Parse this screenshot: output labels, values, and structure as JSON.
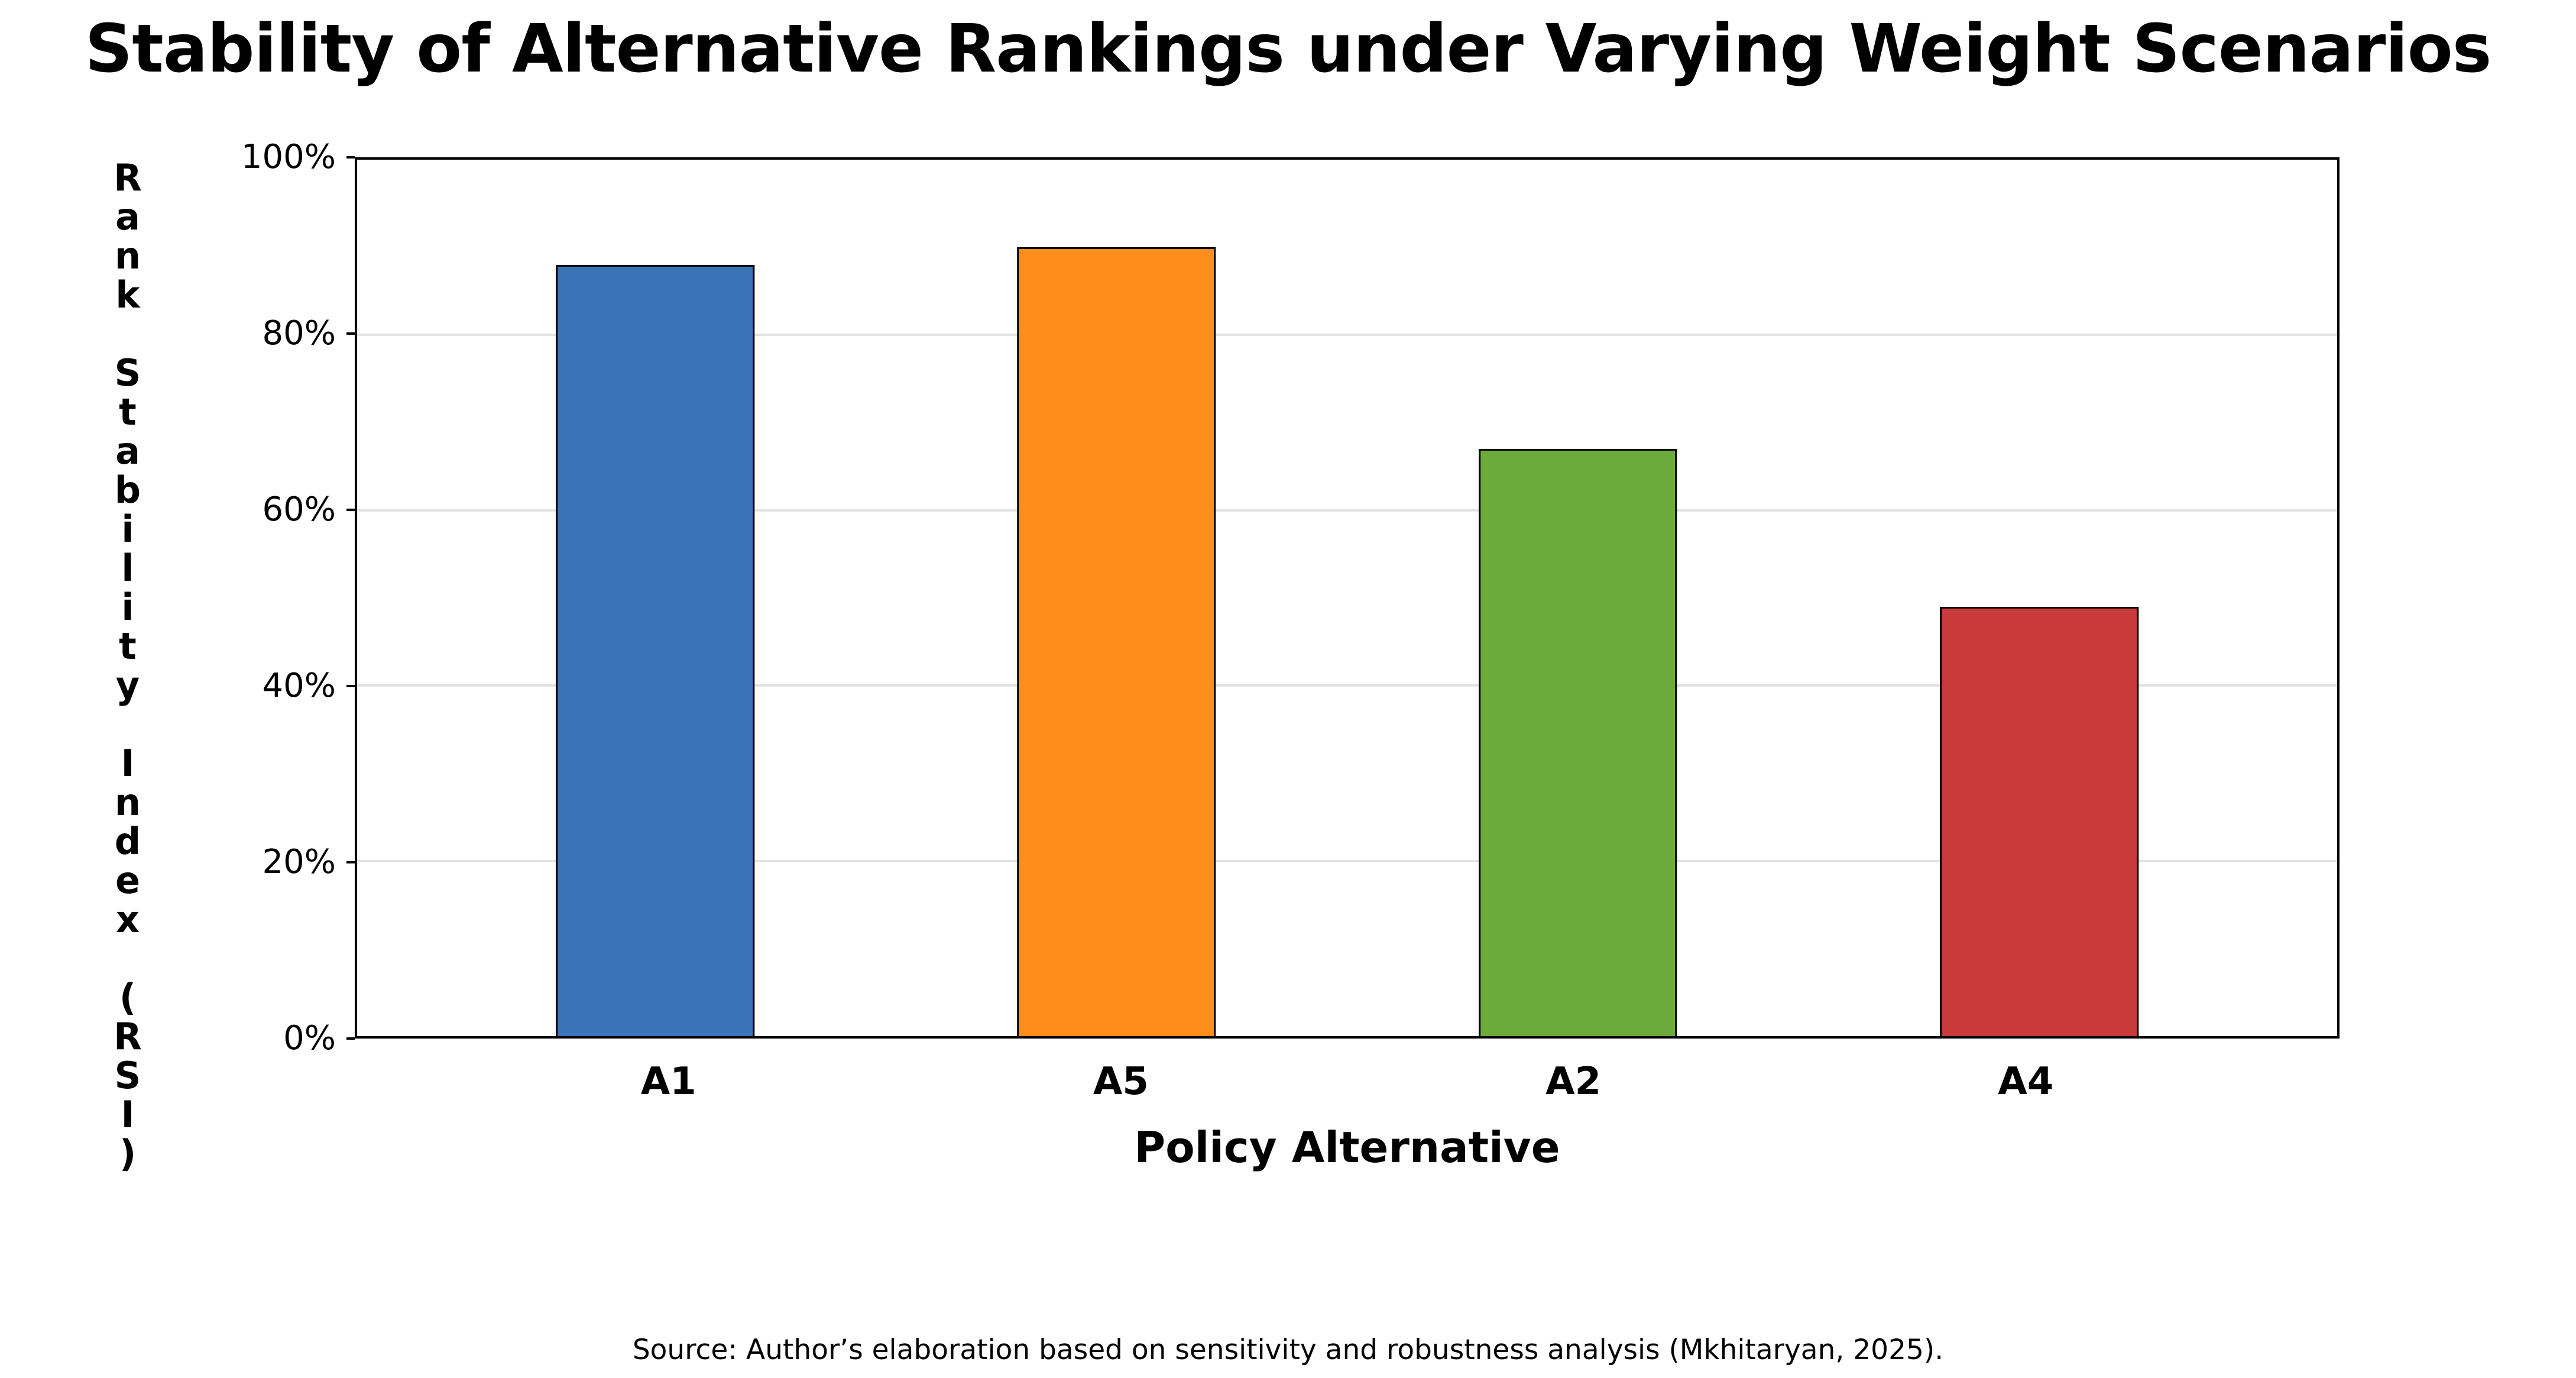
{
  "title": "Stability of Alternative Rankings under Varying Weight Scenarios",
  "y_axis": {
    "label": "Rank Stability Index (RSI)",
    "label_stacked": "R\na\nn\nk\n\nS\nt\na\nb\ni\nl\ni\nt\ny\n\nI\nn\nd\ne\nx\n\n(\nR\nS\nI\n)",
    "tick_labels": [
      "0%",
      "20%",
      "40%",
      "60%",
      "80%",
      "100%"
    ]
  },
  "x_axis": {
    "label": "Policy Alternative"
  },
  "source": "Source: Author’s elaboration based on sensitivity and robustness analysis (Mkhitaryan, 2025).",
  "colors": {
    "background": "#FFFFFF",
    "frame": "#000000",
    "gridline": "#E2E2E2",
    "bar_edge": "#000000",
    "text": "#000000"
  },
  "chart_data": {
    "type": "bar",
    "title": "Stability of Alternative Rankings under Varying Weight Scenarios",
    "xlabel": "Policy Alternative",
    "ylabel": "Rank Stability Index (RSI)",
    "categories": [
      "A1",
      "A5",
      "A2",
      "A4"
    ],
    "values": [
      88,
      90,
      67,
      49
    ],
    "unit": "%",
    "bar_colors": [
      "#3B73B9",
      "#FE8D1C",
      "#6BAA3B",
      "#C93B3B"
    ],
    "ylim": [
      0,
      100
    ],
    "yticks": [
      0,
      20,
      40,
      60,
      80,
      100
    ],
    "grid": "horizontal",
    "legend_position": "none"
  }
}
